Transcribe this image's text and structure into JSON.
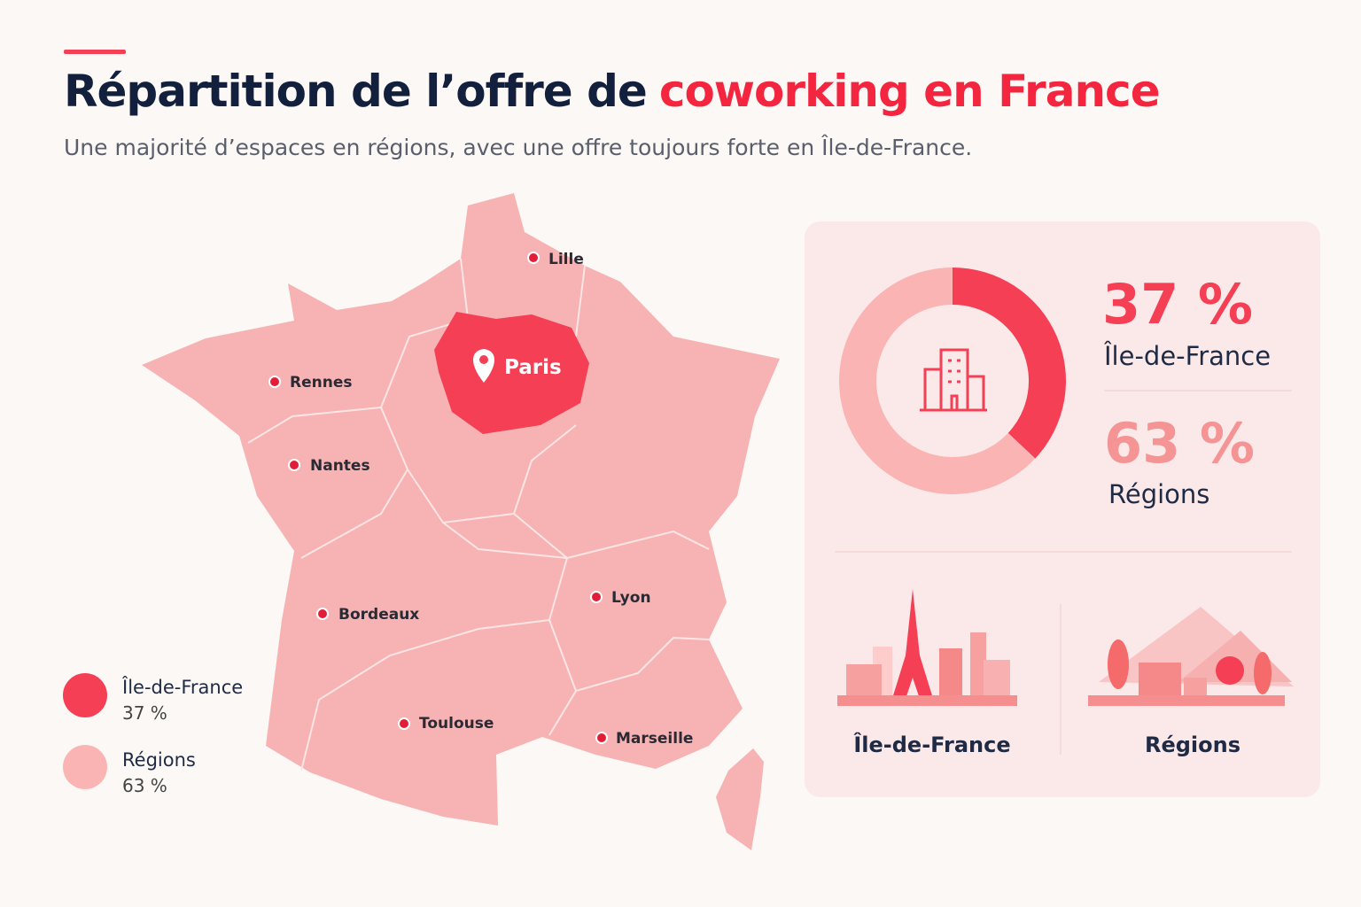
{
  "header": {
    "title": [
      "Répartition de l’offre de",
      "coworking en France"
    ],
    "subtitle": "Une majorité d’espaces en régions, avec une offre toujours forte en Île-de-France."
  },
  "map": {
    "cities": [
      "Lille",
      "Paris",
      "Rennes",
      "Nantes",
      "Bordeaux",
      "Lyon",
      "Toulouse",
      "Marseille"
    ]
  },
  "chart_data": {
    "type": "pie",
    "categories": [
      "Île-de-France",
      "Régions"
    ],
    "values": [
      37,
      63
    ],
    "value_labels": [
      "37 %",
      "63 %"
    ],
    "colors": [
      "#f43f55",
      "#fbb4b4"
    ]
  }
}
